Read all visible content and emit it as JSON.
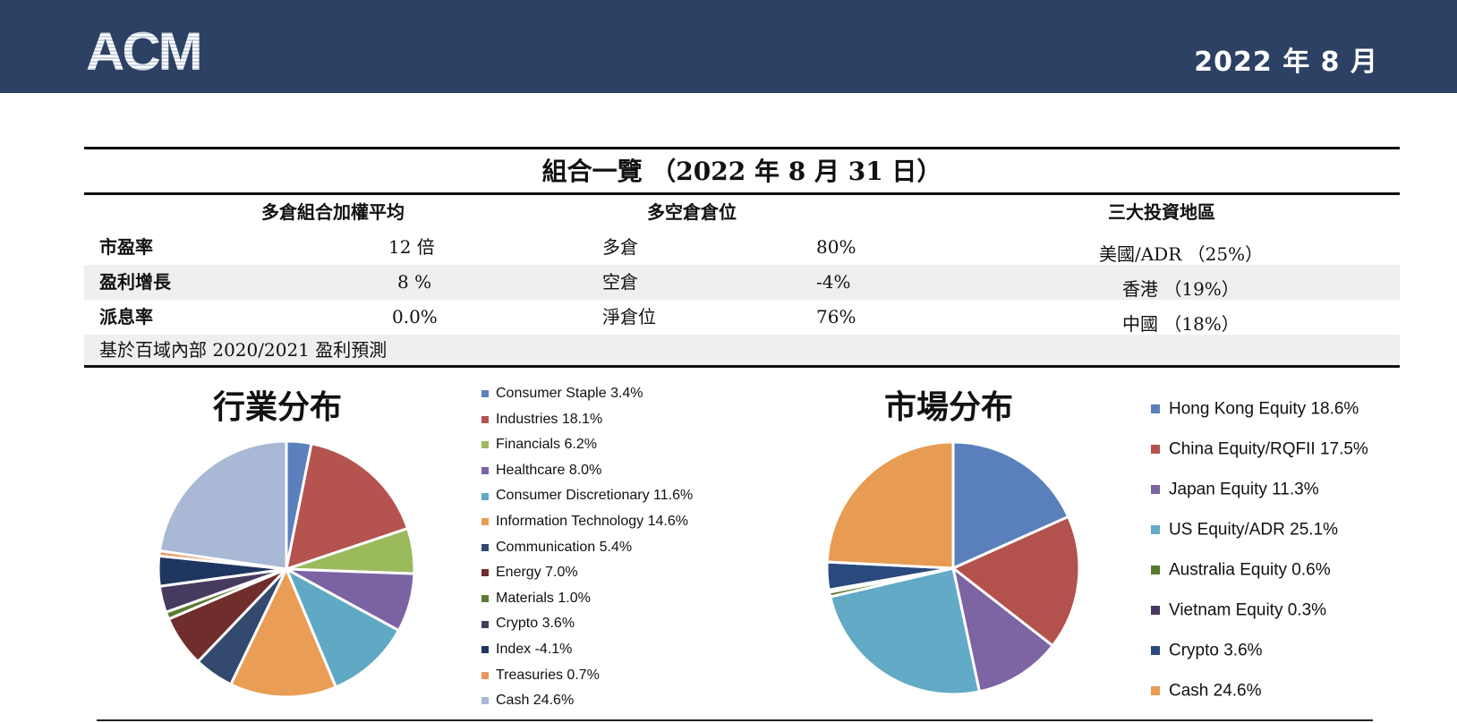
{
  "header": {
    "logo_text": "ACM",
    "date": "2022 年 8 月"
  },
  "summary": {
    "title": "組合一覽 （2022 年 8 月 31 日）",
    "col_headers": [
      "多倉組合加權平均",
      "多空倉倉位",
      "三大投資地區"
    ],
    "rows": [
      {
        "metric": "市盈率",
        "metric_value": "12 倍",
        "position": "多倉",
        "position_value": "80%",
        "region": "美國/ADR （25%）"
      },
      {
        "metric": "盈利增長",
        "metric_value": "8 %",
        "position": "空倉",
        "position_value": "-4%",
        "region": "香港 （19%）"
      },
      {
        "metric": "派息率",
        "metric_value": "0.0%",
        "position": "淨倉位",
        "position_value": "76%",
        "region": "中國 （18%）"
      }
    ],
    "footnote": "基於百域內部 2020/2021 盈利預測"
  },
  "chart_data": [
    {
      "type": "pie",
      "title": "行業分布",
      "categories": [
        "Consumer Staple",
        "Industries",
        "Financials",
        "Healthcare",
        "Consumer Discretionary",
        "Information Technology",
        "Communication",
        "Energy",
        "Materials",
        "Crypto",
        "Index",
        "Treasuries",
        "Cash"
      ],
      "values": [
        3.4,
        18.1,
        6.2,
        8.0,
        11.6,
        14.6,
        5.4,
        7.0,
        1.0,
        3.6,
        -4.1,
        0.7,
        24.6
      ],
      "legend_labels": [
        "Consumer Staple 3.4%",
        "Industries 18.1%",
        "Financials 6.2%",
        "Healthcare 8.0%",
        "Consumer Discretionary 11.6%",
        "Information Technology 14.6%",
        "Communication 5.4%",
        "Energy 7.0%",
        "Materials 1.0%",
        "Crypto 3.6%",
        "Index -4.1%",
        "Treasuries 0.7%",
        "Cash 24.6%"
      ],
      "colors": [
        "#5b80bd",
        "#b5534e",
        "#9aba5c",
        "#7b62a3",
        "#5fa9c4",
        "#ea9d55",
        "#33496e",
        "#6f2d2c",
        "#5d7a33",
        "#463a5e",
        "#1f3660",
        "#e9965b",
        "#a8b8d5"
      ],
      "legend_position": "right"
    },
    {
      "type": "pie",
      "title": "市場分布",
      "categories": [
        "Hong Kong Equity",
        "China Equity/RQFII",
        "Japan Equity",
        "US Equity/ADR",
        "Australia Equity",
        "Vietnam Equity",
        "Crypto",
        "Cash"
      ],
      "values": [
        18.6,
        17.5,
        11.3,
        25.1,
        0.6,
        0.3,
        3.6,
        24.6
      ],
      "legend_labels": [
        "Hong Kong Equity 18.6%",
        "China Equity/RQFII  17.5%",
        "Japan Equity 11.3%",
        "US Equity/ADR 25.1%",
        "Australia Equity 0.6%",
        "Vietnam Equity 0.3%",
        "Crypto 3.6%",
        "Cash 24.6%"
      ],
      "colors": [
        "#5a80bc",
        "#b3524d",
        "#7d64a3",
        "#62aac6",
        "#577a30",
        "#46385e",
        "#2a4a7d",
        "#e89b52"
      ],
      "legend_position": "right"
    }
  ]
}
